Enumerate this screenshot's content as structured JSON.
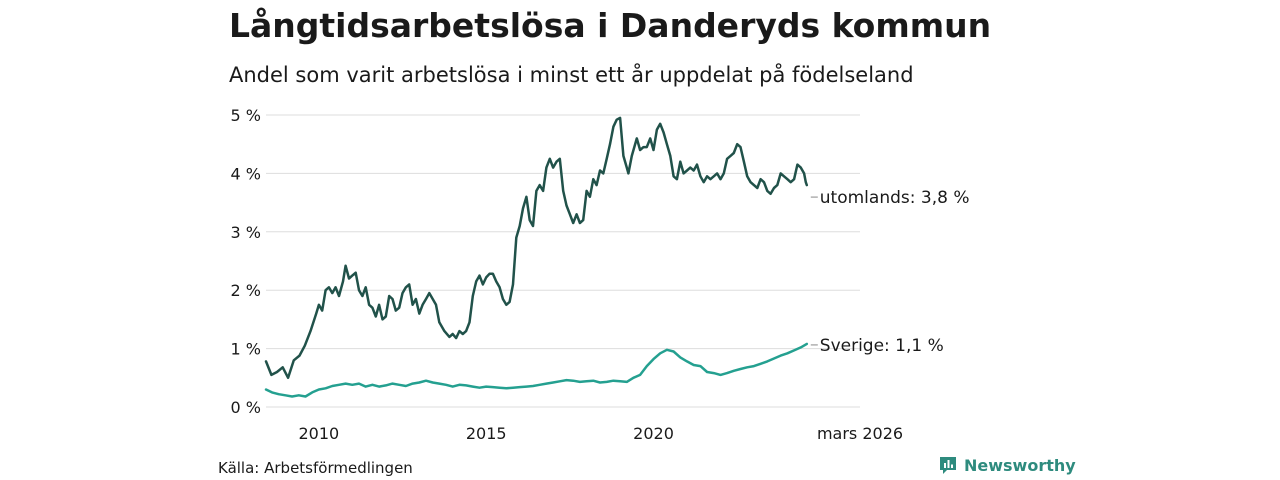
{
  "header": {
    "title": "Långtidsarbetslösa i Danderyds kommun",
    "subtitle": "Andel som varit arbetslösa i minst ett år uppdelat på födelseland"
  },
  "footer": {
    "source": "Källa: Arbetsförmedlingen",
    "brand": "Newsworthy"
  },
  "colors": {
    "foreign": "#21524a",
    "sweden": "#24a090",
    "grid": "#dddddd",
    "brand": "#2e8b7e"
  },
  "chart_data": {
    "type": "line",
    "title": "Långtidsarbetslösa i Danderyds kommun",
    "xlabel": "",
    "ylabel": "",
    "ylim": [
      0,
      5
    ],
    "xlim": [
      2008.42,
      2026.17
    ],
    "y_ticks": [
      0,
      1,
      2,
      3,
      4,
      5
    ],
    "y_tick_labels": [
      "0 %",
      "1 %",
      "2 %",
      "3 %",
      "4 %",
      "5 %"
    ],
    "x_ticks": [
      2010,
      2015,
      2020,
      2026.17
    ],
    "x_tick_labels": [
      "2010",
      "2015",
      "2020",
      "mars 2026"
    ],
    "series": [
      {
        "name": "utomlands",
        "end_label": "utomlands: 3,8 %",
        "points": [
          [
            2008.42,
            0.78
          ],
          [
            2008.58,
            0.55
          ],
          [
            2008.75,
            0.6
          ],
          [
            2008.92,
            0.68
          ],
          [
            2009.08,
            0.5
          ],
          [
            2009.25,
            0.8
          ],
          [
            2009.42,
            0.88
          ],
          [
            2009.58,
            1.05
          ],
          [
            2009.75,
            1.3
          ],
          [
            2009.92,
            1.6
          ],
          [
            2010.0,
            1.75
          ],
          [
            2010.1,
            1.65
          ],
          [
            2010.2,
            2.0
          ],
          [
            2010.3,
            2.05
          ],
          [
            2010.4,
            1.95
          ],
          [
            2010.5,
            2.05
          ],
          [
            2010.6,
            1.9
          ],
          [
            2010.72,
            2.15
          ],
          [
            2010.8,
            2.42
          ],
          [
            2010.9,
            2.2
          ],
          [
            2011.0,
            2.25
          ],
          [
            2011.1,
            2.3
          ],
          [
            2011.2,
            2.0
          ],
          [
            2011.3,
            1.9
          ],
          [
            2011.4,
            2.05
          ],
          [
            2011.5,
            1.75
          ],
          [
            2011.6,
            1.7
          ],
          [
            2011.7,
            1.55
          ],
          [
            2011.8,
            1.75
          ],
          [
            2011.9,
            1.5
          ],
          [
            2012.0,
            1.55
          ],
          [
            2012.1,
            1.9
          ],
          [
            2012.2,
            1.85
          ],
          [
            2012.3,
            1.65
          ],
          [
            2012.4,
            1.7
          ],
          [
            2012.5,
            1.95
          ],
          [
            2012.6,
            2.05
          ],
          [
            2012.7,
            2.1
          ],
          [
            2012.8,
            1.75
          ],
          [
            2012.9,
            1.85
          ],
          [
            2013.0,
            1.6
          ],
          [
            2013.1,
            1.75
          ],
          [
            2013.2,
            1.85
          ],
          [
            2013.3,
            1.95
          ],
          [
            2013.4,
            1.85
          ],
          [
            2013.5,
            1.75
          ],
          [
            2013.6,
            1.45
          ],
          [
            2013.75,
            1.3
          ],
          [
            2013.9,
            1.2
          ],
          [
            2014.0,
            1.25
          ],
          [
            2014.1,
            1.18
          ],
          [
            2014.2,
            1.3
          ],
          [
            2014.3,
            1.25
          ],
          [
            2014.4,
            1.3
          ],
          [
            2014.5,
            1.45
          ],
          [
            2014.6,
            1.9
          ],
          [
            2014.7,
            2.15
          ],
          [
            2014.8,
            2.25
          ],
          [
            2014.9,
            2.1
          ],
          [
            2015.0,
            2.22
          ],
          [
            2015.1,
            2.28
          ],
          [
            2015.2,
            2.28
          ],
          [
            2015.3,
            2.15
          ],
          [
            2015.4,
            2.05
          ],
          [
            2015.5,
            1.85
          ],
          [
            2015.6,
            1.75
          ],
          [
            2015.7,
            1.8
          ],
          [
            2015.8,
            2.1
          ],
          [
            2015.9,
            2.9
          ],
          [
            2016.0,
            3.1
          ],
          [
            2016.1,
            3.4
          ],
          [
            2016.2,
            3.6
          ],
          [
            2016.3,
            3.2
          ],
          [
            2016.4,
            3.1
          ],
          [
            2016.5,
            3.7
          ],
          [
            2016.6,
            3.8
          ],
          [
            2016.7,
            3.7
          ],
          [
            2016.8,
            4.1
          ],
          [
            2016.9,
            4.25
          ],
          [
            2017.0,
            4.1
          ],
          [
            2017.1,
            4.2
          ],
          [
            2017.2,
            4.25
          ],
          [
            2017.3,
            3.7
          ],
          [
            2017.4,
            3.45
          ],
          [
            2017.5,
            3.3
          ],
          [
            2017.6,
            3.15
          ],
          [
            2017.7,
            3.3
          ],
          [
            2017.8,
            3.15
          ],
          [
            2017.9,
            3.2
          ],
          [
            2018.0,
            3.7
          ],
          [
            2018.1,
            3.6
          ],
          [
            2018.2,
            3.9
          ],
          [
            2018.3,
            3.8
          ],
          [
            2018.4,
            4.05
          ],
          [
            2018.5,
            4.0
          ],
          [
            2018.6,
            4.25
          ],
          [
            2018.7,
            4.5
          ],
          [
            2018.8,
            4.8
          ],
          [
            2018.9,
            4.92
          ],
          [
            2019.0,
            4.95
          ],
          [
            2019.1,
            4.3
          ],
          [
            2019.2,
            4.1
          ],
          [
            2019.25,
            4.0
          ],
          [
            2019.35,
            4.3
          ],
          [
            2019.5,
            4.6
          ],
          [
            2019.6,
            4.4
          ],
          [
            2019.7,
            4.45
          ],
          [
            2019.8,
            4.45
          ],
          [
            2019.9,
            4.6
          ],
          [
            2020.0,
            4.4
          ],
          [
            2020.1,
            4.75
          ],
          [
            2020.2,
            4.85
          ],
          [
            2020.3,
            4.7
          ],
          [
            2020.4,
            4.5
          ],
          [
            2020.5,
            4.3
          ],
          [
            2020.6,
            3.95
          ],
          [
            2020.7,
            3.9
          ],
          [
            2020.8,
            4.2
          ],
          [
            2020.9,
            4.0
          ],
          [
            2021.0,
            4.05
          ],
          [
            2021.1,
            4.1
          ],
          [
            2021.2,
            4.05
          ],
          [
            2021.3,
            4.15
          ],
          [
            2021.4,
            3.95
          ],
          [
            2021.5,
            3.85
          ],
          [
            2021.6,
            3.95
          ],
          [
            2021.7,
            3.9
          ],
          [
            2021.8,
            3.95
          ],
          [
            2021.9,
            4.0
          ],
          [
            2022.0,
            3.9
          ],
          [
            2022.1,
            4.0
          ],
          [
            2022.2,
            4.25
          ],
          [
            2022.3,
            4.3
          ],
          [
            2022.4,
            4.35
          ],
          [
            2022.5,
            4.5
          ],
          [
            2022.6,
            4.45
          ],
          [
            2022.7,
            4.2
          ],
          [
            2022.8,
            3.95
          ],
          [
            2022.9,
            3.85
          ],
          [
            2023.0,
            3.8
          ],
          [
            2023.1,
            3.75
          ],
          [
            2023.2,
            3.9
          ],
          [
            2023.3,
            3.85
          ],
          [
            2023.4,
            3.7
          ],
          [
            2023.5,
            3.65
          ],
          [
            2023.6,
            3.75
          ],
          [
            2023.7,
            3.8
          ],
          [
            2023.8,
            4.0
          ],
          [
            2023.9,
            3.95
          ],
          [
            2024.0,
            3.9
          ],
          [
            2024.1,
            3.85
          ],
          [
            2024.2,
            3.9
          ],
          [
            2024.3,
            4.15
          ],
          [
            2024.4,
            4.1
          ],
          [
            2024.5,
            4.0
          ],
          [
            2024.55,
            3.85
          ],
          [
            2024.58,
            3.8
          ]
        ]
      },
      {
        "name": "Sverige",
        "end_label": "Sverige: 1,1 %",
        "points": [
          [
            2008.42,
            0.3
          ],
          [
            2008.6,
            0.25
          ],
          [
            2008.8,
            0.22
          ],
          [
            2009.0,
            0.2
          ],
          [
            2009.2,
            0.18
          ],
          [
            2009.4,
            0.2
          ],
          [
            2009.6,
            0.18
          ],
          [
            2009.8,
            0.25
          ],
          [
            2010.0,
            0.3
          ],
          [
            2010.2,
            0.32
          ],
          [
            2010.4,
            0.36
          ],
          [
            2010.6,
            0.38
          ],
          [
            2010.8,
            0.4
          ],
          [
            2011.0,
            0.38
          ],
          [
            2011.2,
            0.4
          ],
          [
            2011.4,
            0.35
          ],
          [
            2011.6,
            0.38
          ],
          [
            2011.8,
            0.35
          ],
          [
            2012.0,
            0.37
          ],
          [
            2012.2,
            0.4
          ],
          [
            2012.4,
            0.38
          ],
          [
            2012.6,
            0.36
          ],
          [
            2012.8,
            0.4
          ],
          [
            2013.0,
            0.42
          ],
          [
            2013.2,
            0.45
          ],
          [
            2013.4,
            0.42
          ],
          [
            2013.6,
            0.4
          ],
          [
            2013.8,
            0.38
          ],
          [
            2014.0,
            0.35
          ],
          [
            2014.2,
            0.38
          ],
          [
            2014.4,
            0.37
          ],
          [
            2014.6,
            0.35
          ],
          [
            2014.8,
            0.33
          ],
          [
            2015.0,
            0.35
          ],
          [
            2015.2,
            0.34
          ],
          [
            2015.4,
            0.33
          ],
          [
            2015.6,
            0.32
          ],
          [
            2015.8,
            0.33
          ],
          [
            2016.0,
            0.34
          ],
          [
            2016.2,
            0.35
          ],
          [
            2016.4,
            0.36
          ],
          [
            2016.6,
            0.38
          ],
          [
            2016.8,
            0.4
          ],
          [
            2017.0,
            0.42
          ],
          [
            2017.2,
            0.44
          ],
          [
            2017.4,
            0.46
          ],
          [
            2017.6,
            0.45
          ],
          [
            2017.8,
            0.43
          ],
          [
            2018.0,
            0.44
          ],
          [
            2018.2,
            0.45
          ],
          [
            2018.4,
            0.42
          ],
          [
            2018.6,
            0.43
          ],
          [
            2018.8,
            0.45
          ],
          [
            2019.0,
            0.44
          ],
          [
            2019.2,
            0.43
          ],
          [
            2019.4,
            0.5
          ],
          [
            2019.6,
            0.55
          ],
          [
            2019.8,
            0.7
          ],
          [
            2020.0,
            0.82
          ],
          [
            2020.2,
            0.92
          ],
          [
            2020.4,
            0.98
          ],
          [
            2020.6,
            0.95
          ],
          [
            2020.8,
            0.85
          ],
          [
            2021.0,
            0.78
          ],
          [
            2021.2,
            0.72
          ],
          [
            2021.4,
            0.7
          ],
          [
            2021.6,
            0.6
          ],
          [
            2021.8,
            0.58
          ],
          [
            2022.0,
            0.55
          ],
          [
            2022.2,
            0.58
          ],
          [
            2022.4,
            0.62
          ],
          [
            2022.6,
            0.65
          ],
          [
            2022.8,
            0.68
          ],
          [
            2023.0,
            0.7
          ],
          [
            2023.2,
            0.74
          ],
          [
            2023.4,
            0.78
          ],
          [
            2023.6,
            0.83
          ],
          [
            2023.8,
            0.88
          ],
          [
            2024.0,
            0.92
          ],
          [
            2024.2,
            0.97
          ],
          [
            2024.4,
            1.02
          ],
          [
            2024.58,
            1.08
          ]
        ]
      }
    ]
  }
}
